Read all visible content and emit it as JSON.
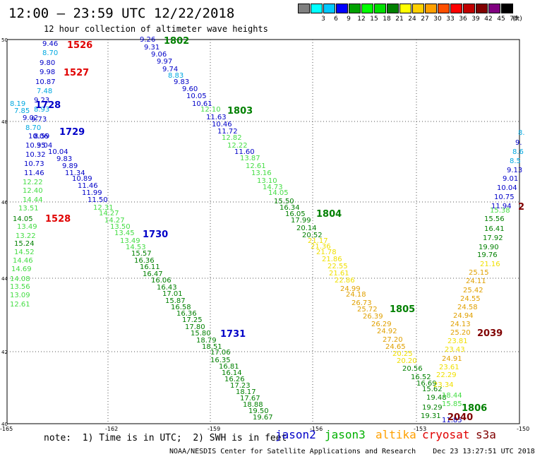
{
  "title": "12:00 – 23:59 UTC 12/22/2018",
  "subtitle": "12 hour collection of altimeter wave heights",
  "legend": {
    "unit": "(ft)",
    "bins": [
      {
        "label": "",
        "color": "#808080"
      },
      {
        "label": "3",
        "color": "#00ffff"
      },
      {
        "label": "6",
        "color": "#00c8ff"
      },
      {
        "label": "9",
        "color": "#0000ff"
      },
      {
        "label": "12",
        "color": "#00a000"
      },
      {
        "label": "15",
        "color": "#00ff00"
      },
      {
        "label": "18",
        "color": "#00e000"
      },
      {
        "label": "21",
        "color": "#008000"
      },
      {
        "label": "24",
        "color": "#ffff00"
      },
      {
        "label": "27",
        "color": "#ffd000"
      },
      {
        "label": "30",
        "color": "#ffa000"
      },
      {
        "label": "33",
        "color": "#ff5000"
      },
      {
        "label": "36",
        "color": "#ff0000"
      },
      {
        "label": "39",
        "color": "#c00000"
      },
      {
        "label": "42",
        "color": "#800000"
      },
      {
        "label": "45",
        "color": "#800080"
      },
      {
        "label": "70",
        "color": "#000000"
      }
    ]
  },
  "axes": {
    "lon_labels": [
      "-165",
      "-162",
      "-159",
      "-156",
      "-153",
      "-150"
    ],
    "lat_labels": [
      "50",
      "48",
      "46",
      "44",
      "42",
      "40"
    ]
  },
  "passes": [
    {
      "label": "1526",
      "color": "#e00000"
    },
    {
      "label": "1527",
      "color": "#e00000"
    },
    {
      "label": "1528",
      "color": "#e00000"
    },
    {
      "label": "1728",
      "color": "#0000c8"
    },
    {
      "label": "1729",
      "color": "#0000c8"
    },
    {
      "label": "1730",
      "color": "#0000c8"
    },
    {
      "label": "1731",
      "color": "#0000c8"
    },
    {
      "label": "1802",
      "color": "#008000"
    },
    {
      "label": "1803",
      "color": "#008000"
    },
    {
      "label": "1804",
      "color": "#008000"
    },
    {
      "label": "1805",
      "color": "#008000"
    },
    {
      "label": "1806",
      "color": "#008000"
    },
    {
      "label": "2039",
      "color": "#800000"
    },
    {
      "label": "2040",
      "color": "#800000"
    },
    {
      "label": "2",
      "color": "#800000"
    }
  ],
  "observations": [
    {
      "v": "9.46",
      "c": "#0000c8"
    },
    {
      "v": "8.70",
      "c": "#00a8e0"
    },
    {
      "v": "9.80",
      "c": "#0000c8"
    },
    {
      "v": "9.98",
      "c": "#0000c8"
    },
    {
      "v": "10.87",
      "c": "#0000c8"
    },
    {
      "v": "7.48",
      "c": "#00a8e0"
    },
    {
      "v": "9.23",
      "c": "#0000c8"
    },
    {
      "v": "8.19",
      "c": "#00a8e0"
    },
    {
      "v": "7.85",
      "c": "#00a8e0"
    },
    {
      "v": "8.93",
      "c": "#00a8e0"
    },
    {
      "v": "9.02",
      "c": "#0000c8"
    },
    {
      "v": "9.73",
      "c": "#0000c8"
    },
    {
      "v": "8.70",
      "c": "#00a8e0"
    },
    {
      "v": "10.06",
      "c": "#0000c8"
    },
    {
      "v": "8.59",
      "c": "#0000c8"
    },
    {
      "v": "10.35",
      "c": "#0000c8"
    },
    {
      "v": "9.04",
      "c": "#0000c8"
    },
    {
      "v": "10.32",
      "c": "#0000c8"
    },
    {
      "v": "10.04",
      "c": "#0000c8"
    },
    {
      "v": "9.83",
      "c": "#0000c8"
    },
    {
      "v": "10.73",
      "c": "#0000c8"
    },
    {
      "v": "9.89",
      "c": "#0000c8"
    },
    {
      "v": "11.46",
      "c": "#0000c8"
    },
    {
      "v": "11.34",
      "c": "#0000c8"
    },
    {
      "v": "10.89",
      "c": "#0000c8"
    },
    {
      "v": "12.22",
      "c": "#44dd44"
    },
    {
      "v": "11.46",
      "c": "#0000c8"
    },
    {
      "v": "12.40",
      "c": "#44dd44"
    },
    {
      "v": "11.99",
      "c": "#0000c8"
    },
    {
      "v": "14.44",
      "c": "#44dd44"
    },
    {
      "v": "11.50",
      "c": "#0000c8"
    },
    {
      "v": "13.51",
      "c": "#44dd44"
    },
    {
      "v": "12.31",
      "c": "#44dd44"
    },
    {
      "v": "14.05",
      "c": "#008000"
    },
    {
      "v": "14.27",
      "c": "#44dd44"
    },
    {
      "v": "13.49",
      "c": "#44dd44"
    },
    {
      "v": "14.27",
      "c": "#44dd44"
    },
    {
      "v": "13.22",
      "c": "#44dd44"
    },
    {
      "v": "13.50",
      "c": "#44dd44"
    },
    {
      "v": "15.24",
      "c": "#008000"
    },
    {
      "v": "13.45",
      "c": "#44dd44"
    },
    {
      "v": "14.52",
      "c": "#44dd44"
    },
    {
      "v": "13.49",
      "c": "#44dd44"
    },
    {
      "v": "14.46",
      "c": "#44dd44"
    },
    {
      "v": "14.53",
      "c": "#44dd44"
    },
    {
      "v": "14.69",
      "c": "#44dd44"
    },
    {
      "v": "15.57",
      "c": "#008000"
    },
    {
      "v": "14.08",
      "c": "#44dd44"
    },
    {
      "v": "16.36",
      "c": "#008000"
    },
    {
      "v": "13.56",
      "c": "#44dd44"
    },
    {
      "v": "16.11",
      "c": "#008000"
    },
    {
      "v": "13.09",
      "c": "#44dd44"
    },
    {
      "v": "16.47",
      "c": "#008000"
    },
    {
      "v": "12.61",
      "c": "#44dd44"
    },
    {
      "v": "16.06",
      "c": "#008000"
    },
    {
      "v": "16.43",
      "c": "#008000"
    },
    {
      "v": "17.01",
      "c": "#008000"
    },
    {
      "v": "15.87",
      "c": "#008000"
    },
    {
      "v": "16.58",
      "c": "#008000"
    },
    {
      "v": "16.36",
      "c": "#008000"
    },
    {
      "v": "17.25",
      "c": "#008000"
    },
    {
      "v": "17.80",
      "c": "#008000"
    },
    {
      "v": "15.80",
      "c": "#008000"
    },
    {
      "v": "18.79",
      "c": "#008000"
    },
    {
      "v": "18.51",
      "c": "#008000"
    },
    {
      "v": "17.06",
      "c": "#008000"
    },
    {
      "v": "16.35",
      "c": "#008000"
    },
    {
      "v": "16.81",
      "c": "#008000"
    },
    {
      "v": "16.14",
      "c": "#008000"
    },
    {
      "v": "16.26",
      "c": "#008000"
    },
    {
      "v": "17.23",
      "c": "#008000"
    },
    {
      "v": "18.17",
      "c": "#008000"
    },
    {
      "v": "17.67",
      "c": "#008000"
    },
    {
      "v": "18.88",
      "c": "#008000"
    },
    {
      "v": "19.50",
      "c": "#008000"
    },
    {
      "v": "19.67",
      "c": "#008000"
    },
    {
      "v": "9.26",
      "c": "#0000c8"
    },
    {
      "v": "9.31",
      "c": "#0000c8"
    },
    {
      "v": "9.06",
      "c": "#0000c8"
    },
    {
      "v": "9.97",
      "c": "#0000c8"
    },
    {
      "v": "9.74",
      "c": "#0000c8"
    },
    {
      "v": "8.83",
      "c": "#00a8e0"
    },
    {
      "v": "9.83",
      "c": "#0000c8"
    },
    {
      "v": "9.60",
      "c": "#0000c8"
    },
    {
      "v": "10.05",
      "c": "#0000c8"
    },
    {
      "v": "10.61",
      "c": "#0000c8"
    },
    {
      "v": "12.10",
      "c": "#44dd44"
    },
    {
      "v": "11.63",
      "c": "#0000c8"
    },
    {
      "v": "10.46",
      "c": "#0000c8"
    },
    {
      "v": "11.72",
      "c": "#0000c8"
    },
    {
      "v": "12.82",
      "c": "#44dd44"
    },
    {
      "v": "12.22",
      "c": "#44dd44"
    },
    {
      "v": "11.60",
      "c": "#0000c8"
    },
    {
      "v": "13.87",
      "c": "#44dd44"
    },
    {
      "v": "12.61",
      "c": "#44dd44"
    },
    {
      "v": "13.16",
      "c": "#44dd44"
    },
    {
      "v": "13.10",
      "c": "#44dd44"
    },
    {
      "v": "14.73",
      "c": "#44dd44"
    },
    {
      "v": "14.05",
      "c": "#44dd44"
    },
    {
      "v": "15.50",
      "c": "#008000"
    },
    {
      "v": "16.34",
      "c": "#008000"
    },
    {
      "v": "16.05",
      "c": "#008000"
    },
    {
      "v": "17.99",
      "c": "#008000"
    },
    {
      "v": "20.14",
      "c": "#008000"
    },
    {
      "v": "20.52",
      "c": "#008000"
    },
    {
      "v": "21.17",
      "c": "#f0e000"
    },
    {
      "v": "21.36",
      "c": "#f0e000"
    },
    {
      "v": "21.78",
      "c": "#f0e000"
    },
    {
      "v": "21.86",
      "c": "#f0e000"
    },
    {
      "v": "22.55",
      "c": "#f0e000"
    },
    {
      "v": "21.61",
      "c": "#f0e000"
    },
    {
      "v": "22.86",
      "c": "#f0e000"
    },
    {
      "v": "24.99",
      "c": "#e0a000"
    },
    {
      "v": "24.18",
      "c": "#e0a000"
    },
    {
      "v": "26.73",
      "c": "#e0a000"
    },
    {
      "v": "25.72",
      "c": "#e0a000"
    },
    {
      "v": "26.39",
      "c": "#e0a000"
    },
    {
      "v": "26.29",
      "c": "#e0a000"
    },
    {
      "v": "24.92",
      "c": "#e0a000"
    },
    {
      "v": "27.20",
      "c": "#e0a000"
    },
    {
      "v": "24.65",
      "c": "#e0a000"
    },
    {
      "v": "20.25",
      "c": "#f0e000"
    },
    {
      "v": "20.20",
      "c": "#f0e000"
    },
    {
      "v": "20.56",
      "c": "#008000"
    },
    {
      "v": "16.52",
      "c": "#008000"
    },
    {
      "v": "16.69",
      "c": "#008000"
    },
    {
      "v": "15.62",
      "c": "#008000"
    },
    {
      "v": "19.48",
      "c": "#008000"
    },
    {
      "v": "19.29",
      "c": "#008000"
    },
    {
      "v": "19.31",
      "c": "#008000"
    },
    {
      "v": "11.85",
      "c": "#0000c8"
    },
    {
      "v": "15.38",
      "c": "#44dd44"
    },
    {
      "v": "15.56",
      "c": "#008000"
    },
    {
      "v": "16.41",
      "c": "#008000"
    },
    {
      "v": "17.92",
      "c": "#008000"
    },
    {
      "v": "19.90",
      "c": "#008000"
    },
    {
      "v": "19.76",
      "c": "#008000"
    },
    {
      "v": "21.16",
      "c": "#f0e000"
    },
    {
      "v": "25.15",
      "c": "#e0a000"
    },
    {
      "v": "24.11",
      "c": "#e0a000"
    },
    {
      "v": "25.42",
      "c": "#e0a000"
    },
    {
      "v": "24.55",
      "c": "#e0a000"
    },
    {
      "v": "24.58",
      "c": "#e0a000"
    },
    {
      "v": "24.94",
      "c": "#e0a000"
    },
    {
      "v": "24.13",
      "c": "#e0a000"
    },
    {
      "v": "25.20",
      "c": "#e0a000"
    },
    {
      "v": "23.81",
      "c": "#f0e000"
    },
    {
      "v": "23.43",
      "c": "#f0e000"
    },
    {
      "v": "24.91",
      "c": "#e0a000"
    },
    {
      "v": "23.61",
      "c": "#f0e000"
    },
    {
      "v": "22.29",
      "c": "#f0e000"
    },
    {
      "v": "23.34",
      "c": "#f0e000"
    },
    {
      "v": "18.44",
      "c": "#44dd44"
    },
    {
      "v": "15.85",
      "c": "#44dd44"
    },
    {
      "v": "8.",
      "c": "#00a8e0"
    },
    {
      "v": "9.",
      "c": "#0000c8"
    },
    {
      "v": "8.6",
      "c": "#00a8e0"
    },
    {
      "v": "8.5",
      "c": "#00a8e0"
    },
    {
      "v": "9.13",
      "c": "#0000c8"
    },
    {
      "v": "9.01",
      "c": "#0000c8"
    },
    {
      "v": "10.04",
      "c": "#0000c8"
    },
    {
      "v": "10.75",
      "c": "#0000c8"
    },
    {
      "v": "11.94",
      "c": "#0000c8"
    }
  ],
  "footer": {
    "note": "note:  1) Time is in UTC;  2) SWH is in feet",
    "satellites": [
      {
        "name": "jason2",
        "color": "#0000c8"
      },
      {
        "name": "jason3",
        "color": "#00b000"
      },
      {
        "name": "altika",
        "color": "#ffa000"
      },
      {
        "name": "cryosat",
        "color": "#e00000"
      },
      {
        "name": "s3a",
        "color": "#800000"
      }
    ],
    "credit": "NOAA/NESDIS Center for Satellite Applications and Research    Dec 23 13:27:51 UTC 2018"
  }
}
